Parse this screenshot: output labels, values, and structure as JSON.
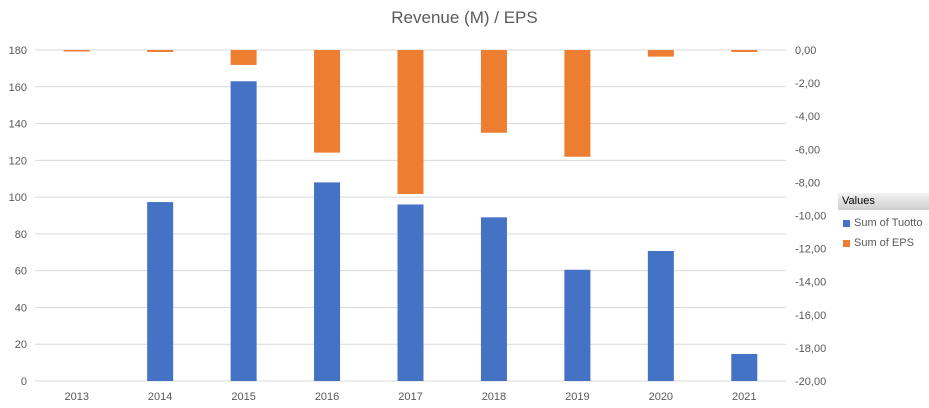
{
  "chart_data": {
    "type": "bar",
    "title": "Revenue (M) /  EPS",
    "categories": [
      "2013",
      "2014",
      "2015",
      "2016",
      "2017",
      "2018",
      "2019",
      "2020",
      "2021"
    ],
    "series": [
      {
        "name": "Sum of Tuotto",
        "axis": "left",
        "color": "#4472c4",
        "values": [
          0,
          97.3,
          163,
          108,
          96,
          89,
          60.5,
          70.7,
          14.7
        ]
      },
      {
        "name": "Sum of EPS",
        "axis": "right",
        "color": "#ed7d31",
        "values": [
          -0.06,
          -0.12,
          -0.9,
          -6.2,
          -8.7,
          -5.0,
          -6.45,
          -0.4,
          -0.12
        ]
      }
    ],
    "ylim": [
      0,
      180
    ],
    "yticks": [
      "0",
      "20",
      "40",
      "60",
      "80",
      "100",
      "120",
      "140",
      "160",
      "180"
    ],
    "y2lim": [
      -20,
      0
    ],
    "y2ticks": [
      "-20,00",
      "-18,00",
      "-16,00",
      "-14,00",
      "-12,00",
      "-10,00",
      "-8,00",
      "-6,00",
      "-4,00",
      "-2,00",
      "0,00"
    ],
    "grid": true,
    "legend_title": "Values",
    "legend_position": "right"
  }
}
